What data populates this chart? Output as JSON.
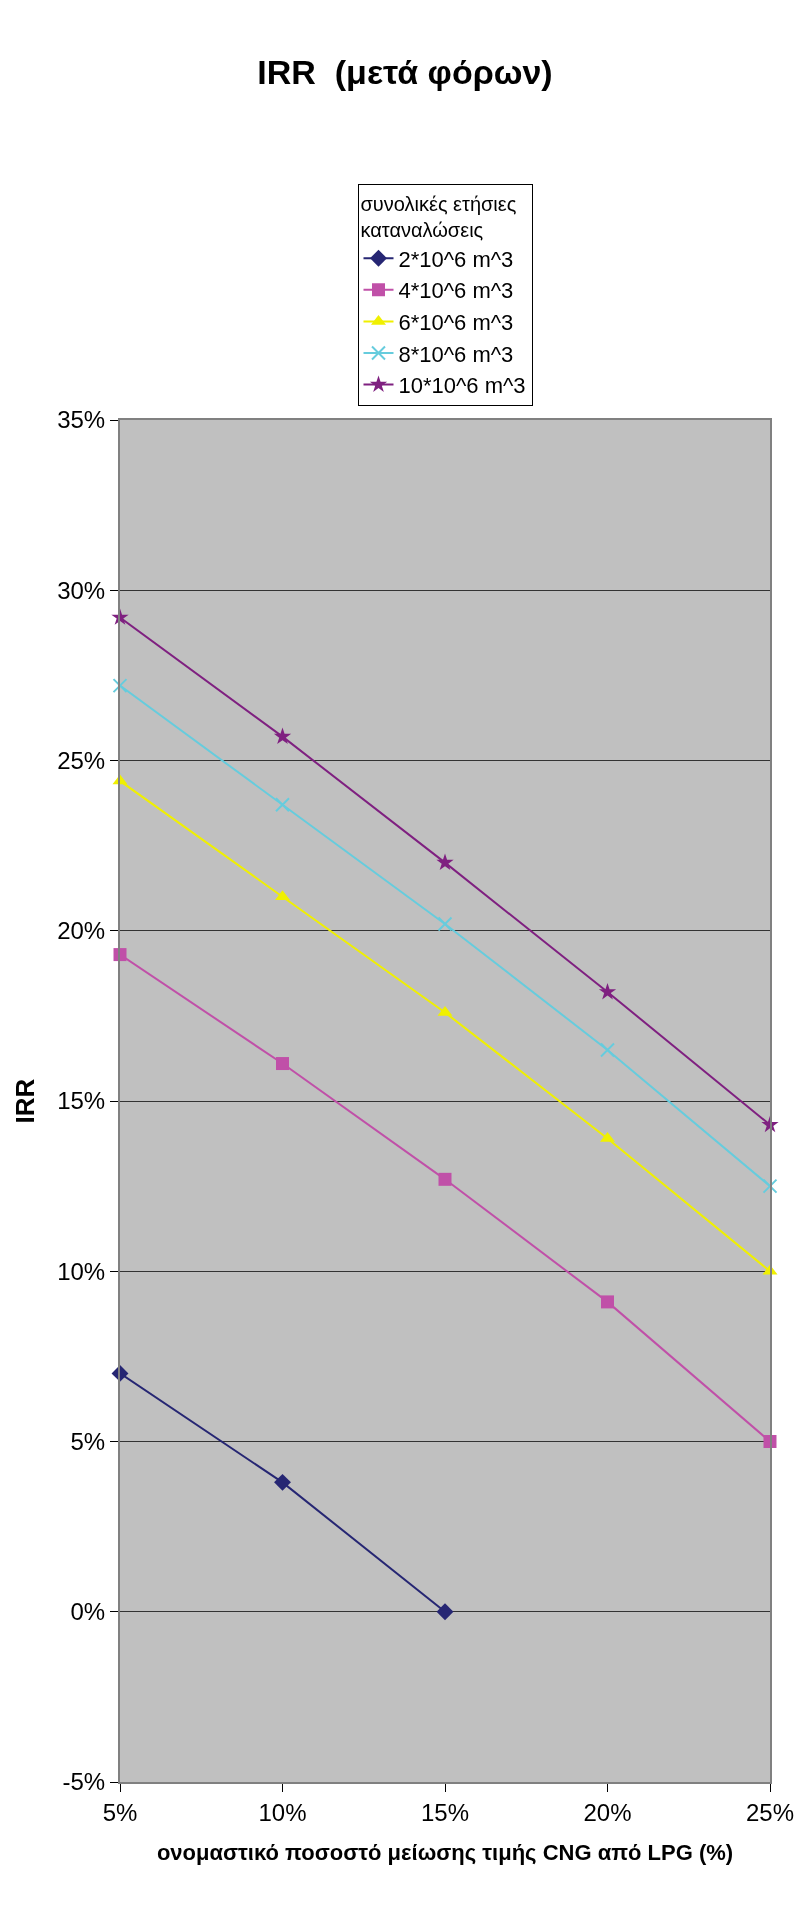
{
  "chart_data": {
    "type": "line",
    "title": "IRR  (μετά φόρων)",
    "xlabel": "ονομαστικό ποσοστό μείωσης τιμής CNG από LPG (%)",
    "ylabel": "IRR",
    "legend_title": "συνολικές ετήσιες\nκαταναλώσεις",
    "x": [
      5,
      10,
      15,
      20,
      25
    ],
    "xlim": [
      5,
      25
    ],
    "xticks": [
      {
        "value": 5,
        "label": "5%"
      },
      {
        "value": 10,
        "label": "10%"
      },
      {
        "value": 15,
        "label": "15%"
      },
      {
        "value": 20,
        "label": "20%"
      },
      {
        "value": 25,
        "label": "25%"
      }
    ],
    "ylim": [
      -5,
      35
    ],
    "yticks": [
      {
        "value": -5,
        "label": "-5%"
      },
      {
        "value": 0,
        "label": "0%"
      },
      {
        "value": 5,
        "label": "5%"
      },
      {
        "value": 10,
        "label": "10%"
      },
      {
        "value": 15,
        "label": "15%"
      },
      {
        "value": 20,
        "label": "20%"
      },
      {
        "value": 25,
        "label": "25%"
      },
      {
        "value": 30,
        "label": "30%"
      },
      {
        "value": 35,
        "label": "35%"
      }
    ],
    "grid": "y",
    "legend": "top",
    "series": [
      {
        "name": "2*10^6 m^3",
        "color": "#262673",
        "marker": "diamond",
        "values": [
          7.0,
          3.8,
          0,
          null,
          null
        ]
      },
      {
        "name": "4*10^6 m^3",
        "color": "#c050a8",
        "marker": "square",
        "values": [
          19.3,
          16.1,
          12.7,
          9.1,
          5.0
        ]
      },
      {
        "name": "6*10^6 m^3",
        "color": "#f0f000",
        "marker": "triangle",
        "values": [
          24.4,
          21.0,
          17.6,
          13.9,
          10.0
        ]
      },
      {
        "name": "8*10^6 m^3",
        "color": "#66ccdd",
        "marker": "cross",
        "values": [
          27.2,
          23.7,
          20.2,
          16.5,
          12.5
        ]
      },
      {
        "name": "10*10^6 m^3",
        "color": "#7f2080",
        "marker": "star",
        "values": [
          29.2,
          25.7,
          22.0,
          18.2,
          14.3
        ]
      }
    ]
  }
}
